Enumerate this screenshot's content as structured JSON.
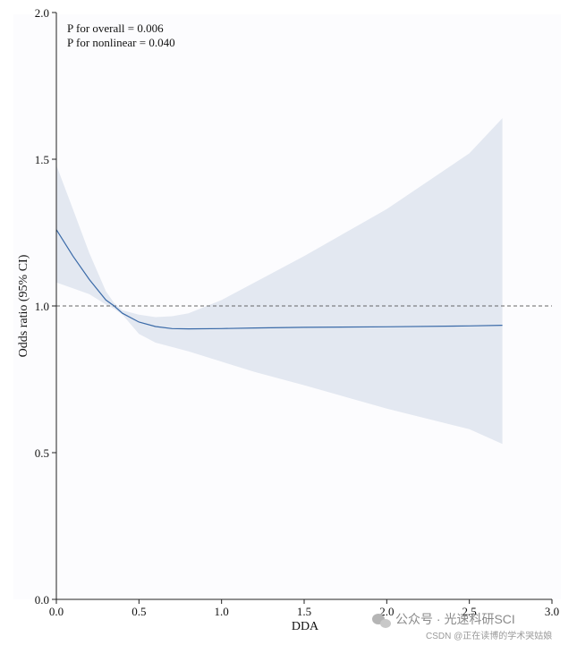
{
  "chart_data": {
    "type": "line",
    "title": "",
    "xlabel": "DDA",
    "ylabel": "Odds ratio (95% CI)",
    "xlim": [
      0.0,
      3.0
    ],
    "ylim": [
      0.0,
      2.0
    ],
    "xticks": [
      0.0,
      0.5,
      1.0,
      1.5,
      2.0,
      2.5,
      3.0
    ],
    "xtick_labels": [
      "0.0",
      "0.5",
      "1.0",
      "1.5",
      "2.0",
      "2.5",
      "3.0"
    ],
    "yticks": [
      0.0,
      0.5,
      1.0,
      1.5,
      2.0
    ],
    "ytick_labels": [
      "0.0",
      "0.5",
      "1.0",
      "1.5",
      "2.0"
    ],
    "reference_line": {
      "y": 1.0,
      "style": "dashed"
    },
    "annotations": [
      "P for overall = 0.006",
      "P for nonlinear = 0.040"
    ],
    "series": [
      {
        "name": "Odds ratio",
        "x": [
          0.0,
          0.1,
          0.2,
          0.3,
          0.35,
          0.4,
          0.5,
          0.6,
          0.7,
          0.8,
          1.0,
          1.2,
          1.5,
          2.0,
          2.5,
          2.7
        ],
        "y": [
          1.26,
          1.17,
          1.09,
          1.02,
          1.0,
          0.975,
          0.945,
          0.93,
          0.923,
          0.922,
          0.923,
          0.925,
          0.927,
          0.929,
          0.932,
          0.934
        ],
        "lower": [
          1.08,
          1.06,
          1.04,
          1.005,
          0.99,
          0.97,
          0.905,
          0.875,
          0.86,
          0.845,
          0.81,
          0.775,
          0.73,
          0.65,
          0.58,
          0.53
        ],
        "upper": [
          1.48,
          1.33,
          1.18,
          1.05,
          1.01,
          0.985,
          0.97,
          0.962,
          0.965,
          0.975,
          1.02,
          1.08,
          1.17,
          1.33,
          1.52,
          1.64
        ]
      }
    ],
    "line_color": "#3a6aa8",
    "band_color": "#e3e8f1",
    "plot_background": "#fcfcfe",
    "grid": false
  },
  "watermark": {
    "main": "公众号 · 光速科研SCI",
    "sub": "CSDN @正在读博的学术哭姑娘"
  }
}
